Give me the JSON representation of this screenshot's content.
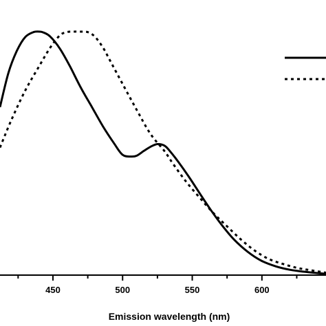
{
  "chart_data": {
    "type": "line",
    "xlabel": "Emission wavelength (nm)",
    "ylabel": "",
    "xlim": [
      412,
      646
    ],
    "ylim": [
      0,
      1.0
    ],
    "x_ticks": [
      450,
      500,
      550,
      600
    ],
    "x_tick_labels": [
      "450",
      "500",
      "550",
      "600"
    ],
    "grid": false,
    "legend": {
      "position": "top-right",
      "entries": [
        {
          "style": "solid"
        },
        {
          "style": "dotted"
        }
      ]
    },
    "series": [
      {
        "style": "solid",
        "color": "#000000",
        "x": [
          412,
          418,
          424,
          430,
          436,
          440,
          443,
          448,
          455,
          462,
          470,
          478,
          486,
          494,
          500,
          506,
          510,
          515,
          520,
          525,
          530,
          534,
          540,
          548,
          556,
          564,
          572,
          580,
          590,
          600,
          610,
          620,
          630,
          646
        ],
        "y": [
          0.69,
          0.83,
          0.92,
          0.977,
          0.998,
          1.0,
          0.997,
          0.98,
          0.93,
          0.86,
          0.77,
          0.69,
          0.61,
          0.54,
          0.494,
          0.487,
          0.49,
          0.509,
          0.527,
          0.538,
          0.532,
          0.509,
          0.465,
          0.4,
          0.33,
          0.262,
          0.2,
          0.146,
          0.095,
          0.058,
          0.036,
          0.022,
          0.014,
          0.005
        ]
      },
      {
        "style": "dotted",
        "color": "#000000",
        "x": [
          412,
          420,
          430,
          440,
          448,
          455,
          460,
          465,
          470,
          475,
          480,
          486,
          492,
          500,
          510,
          520,
          530,
          536,
          545,
          555,
          565,
          575,
          585,
          595,
          605,
          615,
          625,
          635,
          646
        ],
        "y": [
          0.524,
          0.635,
          0.757,
          0.857,
          0.934,
          0.985,
          0.998,
          1.0,
          1.0,
          0.998,
          0.98,
          0.934,
          0.87,
          0.785,
          0.68,
          0.58,
          0.51,
          0.459,
          0.388,
          0.32,
          0.256,
          0.2,
          0.146,
          0.1,
          0.066,
          0.046,
          0.03,
          0.02,
          0.01
        ]
      }
    ]
  }
}
